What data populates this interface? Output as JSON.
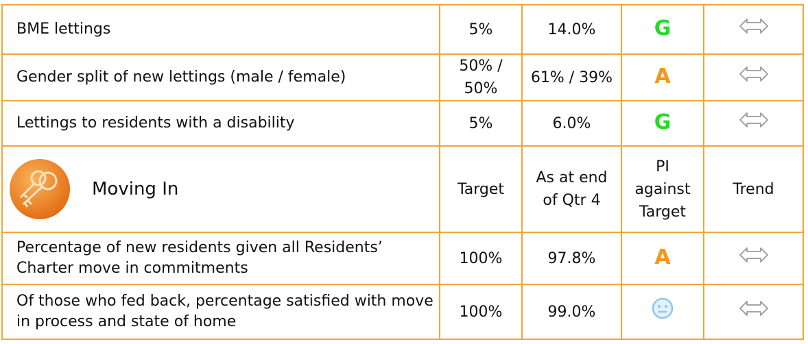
{
  "table": {
    "rows_top": [
      {
        "measure": "BME lettings",
        "target": "5%",
        "actual": "14.0%",
        "rating": "G"
      },
      {
        "measure": "Gender split of new lettings (male / female)",
        "target": "50% / 50%",
        "actual": "61% / 39%",
        "rating": "A"
      },
      {
        "measure": "Lettings to residents with a disability",
        "target": "5%",
        "actual": "6.0%",
        "rating": "G"
      }
    ],
    "header": {
      "title": "Moving In",
      "target": "Target",
      "actual": "As at end of Qtr 4",
      "rating": "PI against Target",
      "trend": "Trend"
    },
    "rows_bottom": [
      {
        "measure": "Percentage of new residents given all Residents’ Charter move in commitments",
        "target": "100%",
        "actual": "97.8%",
        "rating": "A"
      },
      {
        "measure": "Of those who fed back, percentage satisfied with move in process and state of home",
        "target": "100%",
        "actual": "99.0%"
      }
    ]
  }
}
